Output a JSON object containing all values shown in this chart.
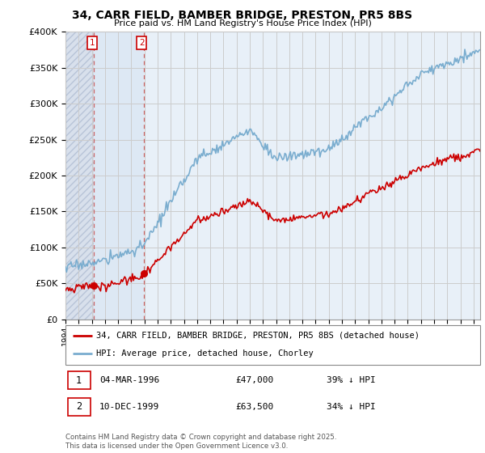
{
  "title": "34, CARR FIELD, BAMBER BRIDGE, PRESTON, PR5 8BS",
  "subtitle": "Price paid vs. HM Land Registry's House Price Index (HPI)",
  "red_label": "34, CARR FIELD, BAMBER BRIDGE, PRESTON, PR5 8BS (detached house)",
  "blue_label": "HPI: Average price, detached house, Chorley",
  "footer": "Contains HM Land Registry data © Crown copyright and database right 2025.\nThis data is licensed under the Open Government Licence v3.0.",
  "transactions": [
    {
      "num": 1,
      "date": "04-MAR-1996",
      "price": 47000,
      "pct": "39% ↓ HPI",
      "year": 1996.17
    },
    {
      "num": 2,
      "date": "10-DEC-1999",
      "price": 63500,
      "pct": "34% ↓ HPI",
      "year": 1999.94
    }
  ],
  "ylim": [
    0,
    400000
  ],
  "xlim_start": 1994.0,
  "xlim_end": 2025.5,
  "red_color": "#cc0000",
  "blue_color": "#7aadcf",
  "vline_color": "#cc6666",
  "background_color": "#e8f0f8",
  "hatch_bg_color": "#d8e0ec",
  "inter_tx_color": "#dde8f4",
  "grid_color": "#cccccc",
  "box_color": "#cc0000"
}
